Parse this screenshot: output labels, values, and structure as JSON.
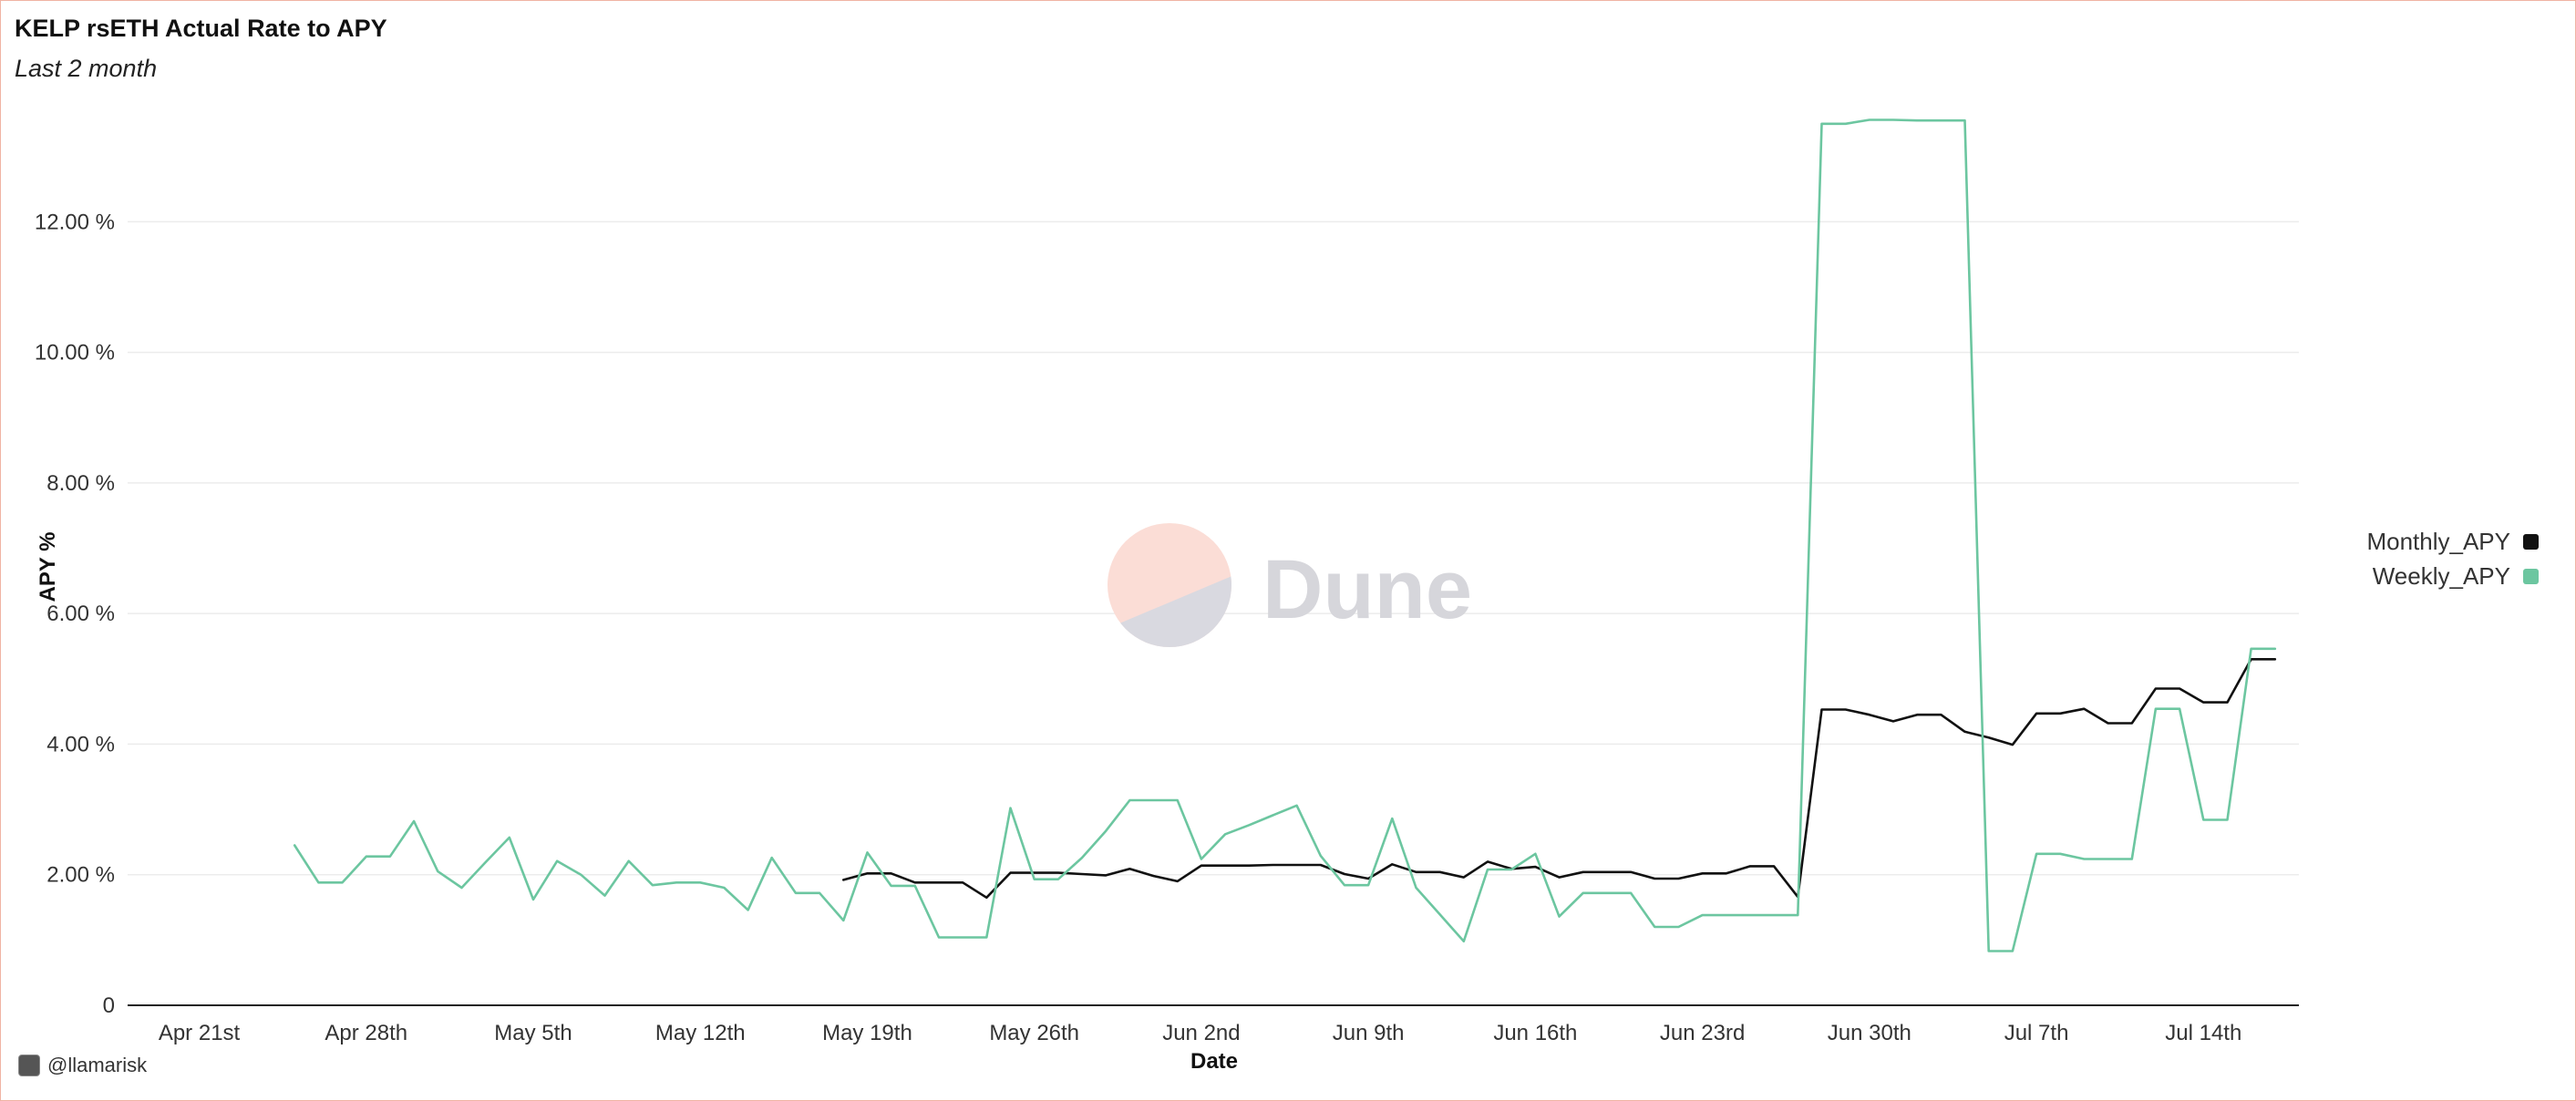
{
  "header": {
    "title": "KELP rsETH Actual Rate to APY",
    "subtitle": "Last 2 month"
  },
  "footer": {
    "author": "@llamarisk",
    "avatar_icon": "avatar-icon"
  },
  "watermark": {
    "text": "Dune",
    "colors": {
      "top": "#fbddd6",
      "bottom": "#d9d9e0"
    }
  },
  "chart_data": {
    "type": "line",
    "xlabel": "Date",
    "ylabel": "APY %",
    "x_range": [
      "2024-04-18",
      "2024-07-18"
    ],
    "ylim": [
      0,
      14
    ],
    "y_ticks": [
      0,
      2,
      4,
      6,
      8,
      10,
      12
    ],
    "y_tick_labels": [
      "0",
      "2.00 %",
      "4.00 %",
      "6.00 %",
      "8.00 %",
      "10.00 %",
      "12.00 %"
    ],
    "x_ticks": [
      "2024-04-21",
      "2024-04-28",
      "2024-05-05",
      "2024-05-12",
      "2024-05-19",
      "2024-05-26",
      "2024-06-02",
      "2024-06-09",
      "2024-06-16",
      "2024-06-23",
      "2024-06-30",
      "2024-07-07",
      "2024-07-14"
    ],
    "x_tick_labels": [
      "Apr 21st",
      "Apr 28th",
      "May 5th",
      "May 12th",
      "May 19th",
      "May 26th",
      "Jun 2nd",
      "Jun 9th",
      "Jun 16th",
      "Jun 23rd",
      "Jun 30th",
      "Jul 7th",
      "Jul 14th"
    ],
    "grid": true,
    "legend_position": "right",
    "series": [
      {
        "name": "Monthly_APY",
        "color": "#111111",
        "points": [
          [
            "2024-05-18",
            1.92
          ],
          [
            "2024-05-19",
            2.02
          ],
          [
            "2024-05-20",
            2.02
          ],
          [
            "2024-05-21",
            1.88
          ],
          [
            "2024-05-22",
            1.88
          ],
          [
            "2024-05-23",
            1.88
          ],
          [
            "2024-05-24",
            1.65
          ],
          [
            "2024-05-25",
            2.03
          ],
          [
            "2024-05-26",
            2.03
          ],
          [
            "2024-05-27",
            2.03
          ],
          [
            "2024-05-28",
            2.01
          ],
          [
            "2024-05-29",
            1.99
          ],
          [
            "2024-05-30",
            2.09
          ],
          [
            "2024-05-31",
            1.98
          ],
          [
            "2024-06-01",
            1.9
          ],
          [
            "2024-06-02",
            2.14
          ],
          [
            "2024-06-03",
            2.14
          ],
          [
            "2024-06-04",
            2.14
          ],
          [
            "2024-06-05",
            2.15
          ],
          [
            "2024-06-06",
            2.15
          ],
          [
            "2024-06-07",
            2.15
          ],
          [
            "2024-06-08",
            2.01
          ],
          [
            "2024-06-09",
            1.94
          ],
          [
            "2024-06-10",
            2.16
          ],
          [
            "2024-06-11",
            2.04
          ],
          [
            "2024-06-12",
            2.04
          ],
          [
            "2024-06-13",
            1.96
          ],
          [
            "2024-06-14",
            2.2
          ],
          [
            "2024-06-15",
            2.09
          ],
          [
            "2024-06-16",
            2.12
          ],
          [
            "2024-06-17",
            1.96
          ],
          [
            "2024-06-18",
            2.04
          ],
          [
            "2024-06-19",
            2.04
          ],
          [
            "2024-06-20",
            2.04
          ],
          [
            "2024-06-21",
            1.94
          ],
          [
            "2024-06-22",
            1.94
          ],
          [
            "2024-06-23",
            2.02
          ],
          [
            "2024-06-24",
            2.02
          ],
          [
            "2024-06-25",
            2.13
          ],
          [
            "2024-06-26",
            2.13
          ],
          [
            "2024-06-27",
            1.66
          ],
          [
            "2024-06-28",
            4.53
          ],
          [
            "2024-06-29",
            4.53
          ],
          [
            "2024-06-30",
            4.45
          ],
          [
            "2024-07-01",
            4.35
          ],
          [
            "2024-07-02",
            4.45
          ],
          [
            "2024-07-03",
            4.45
          ],
          [
            "2024-07-04",
            4.19
          ],
          [
            "2024-07-05",
            4.1
          ],
          [
            "2024-07-06",
            3.99
          ],
          [
            "2024-07-07",
            4.47
          ],
          [
            "2024-07-08",
            4.47
          ],
          [
            "2024-07-09",
            4.54
          ],
          [
            "2024-07-10",
            4.32
          ],
          [
            "2024-07-11",
            4.32
          ],
          [
            "2024-07-12",
            4.85
          ],
          [
            "2024-07-13",
            4.85
          ],
          [
            "2024-07-14",
            4.64
          ],
          [
            "2024-07-15",
            4.64
          ],
          [
            "2024-07-16",
            5.3
          ],
          [
            "2024-07-17",
            5.3
          ]
        ]
      },
      {
        "name": "Weekly_APY",
        "color": "#6cc6a0",
        "points": [
          [
            "2024-04-25",
            2.45
          ],
          [
            "2024-04-26",
            1.88
          ],
          [
            "2024-04-27",
            1.88
          ],
          [
            "2024-04-28",
            2.28
          ],
          [
            "2024-04-29",
            2.28
          ],
          [
            "2024-04-30",
            2.82
          ],
          [
            "2024-05-01",
            2.05
          ],
          [
            "2024-05-02",
            1.8
          ],
          [
            "2024-05-03",
            2.19
          ],
          [
            "2024-05-04",
            2.57
          ],
          [
            "2024-05-05",
            1.62
          ],
          [
            "2024-05-06",
            2.21
          ],
          [
            "2024-05-07",
            2.0
          ],
          [
            "2024-05-08",
            1.68
          ],
          [
            "2024-05-09",
            2.21
          ],
          [
            "2024-05-10",
            1.84
          ],
          [
            "2024-05-11",
            1.88
          ],
          [
            "2024-05-12",
            1.88
          ],
          [
            "2024-05-13",
            1.8
          ],
          [
            "2024-05-14",
            1.46
          ],
          [
            "2024-05-15",
            2.26
          ],
          [
            "2024-05-16",
            1.72
          ],
          [
            "2024-05-17",
            1.72
          ],
          [
            "2024-05-18",
            1.3
          ],
          [
            "2024-05-19",
            2.34
          ],
          [
            "2024-05-20",
            1.83
          ],
          [
            "2024-05-21",
            1.83
          ],
          [
            "2024-05-22",
            1.04
          ],
          [
            "2024-05-23",
            1.04
          ],
          [
            "2024-05-24",
            1.04
          ],
          [
            "2024-05-25",
            3.02
          ],
          [
            "2024-05-26",
            1.93
          ],
          [
            "2024-05-27",
            1.93
          ],
          [
            "2024-05-28",
            2.26
          ],
          [
            "2024-05-29",
            2.67
          ],
          [
            "2024-05-30",
            3.14
          ],
          [
            "2024-05-31",
            3.14
          ],
          [
            "2024-06-01",
            3.14
          ],
          [
            "2024-06-02",
            2.24
          ],
          [
            "2024-06-03",
            2.62
          ],
          [
            "2024-06-04",
            2.76
          ],
          [
            "2024-06-05",
            2.91
          ],
          [
            "2024-06-06",
            3.06
          ],
          [
            "2024-06-07",
            2.29
          ],
          [
            "2024-06-08",
            1.84
          ],
          [
            "2024-06-09",
            1.84
          ],
          [
            "2024-06-10",
            2.86
          ],
          [
            "2024-06-11",
            1.8
          ],
          [
            "2024-06-12",
            1.39
          ],
          [
            "2024-06-13",
            0.98
          ],
          [
            "2024-06-14",
            2.08
          ],
          [
            "2024-06-15",
            2.08
          ],
          [
            "2024-06-16",
            2.32
          ],
          [
            "2024-06-17",
            1.36
          ],
          [
            "2024-06-18",
            1.72
          ],
          [
            "2024-06-19",
            1.72
          ],
          [
            "2024-06-20",
            1.72
          ],
          [
            "2024-06-21",
            1.2
          ],
          [
            "2024-06-22",
            1.2
          ],
          [
            "2024-06-23",
            1.38
          ],
          [
            "2024-06-24",
            1.38
          ],
          [
            "2024-06-25",
            1.38
          ],
          [
            "2024-06-26",
            1.38
          ],
          [
            "2024-06-27",
            1.38
          ],
          [
            "2024-06-28",
            13.5
          ],
          [
            "2024-06-29",
            13.5
          ],
          [
            "2024-06-30",
            13.56
          ],
          [
            "2024-07-01",
            13.56
          ],
          [
            "2024-07-02",
            13.55
          ],
          [
            "2024-07-03",
            13.55
          ],
          [
            "2024-07-04",
            13.55
          ],
          [
            "2024-07-05",
            0.83
          ],
          [
            "2024-07-06",
            0.83
          ],
          [
            "2024-07-07",
            2.32
          ],
          [
            "2024-07-08",
            2.32
          ],
          [
            "2024-07-09",
            2.24
          ],
          [
            "2024-07-10",
            2.24
          ],
          [
            "2024-07-11",
            2.24
          ],
          [
            "2024-07-12",
            4.54
          ],
          [
            "2024-07-13",
            4.54
          ],
          [
            "2024-07-14",
            2.84
          ],
          [
            "2024-07-15",
            2.84
          ],
          [
            "2024-07-16",
            5.46
          ],
          [
            "2024-07-17",
            5.46
          ]
        ]
      }
    ]
  }
}
